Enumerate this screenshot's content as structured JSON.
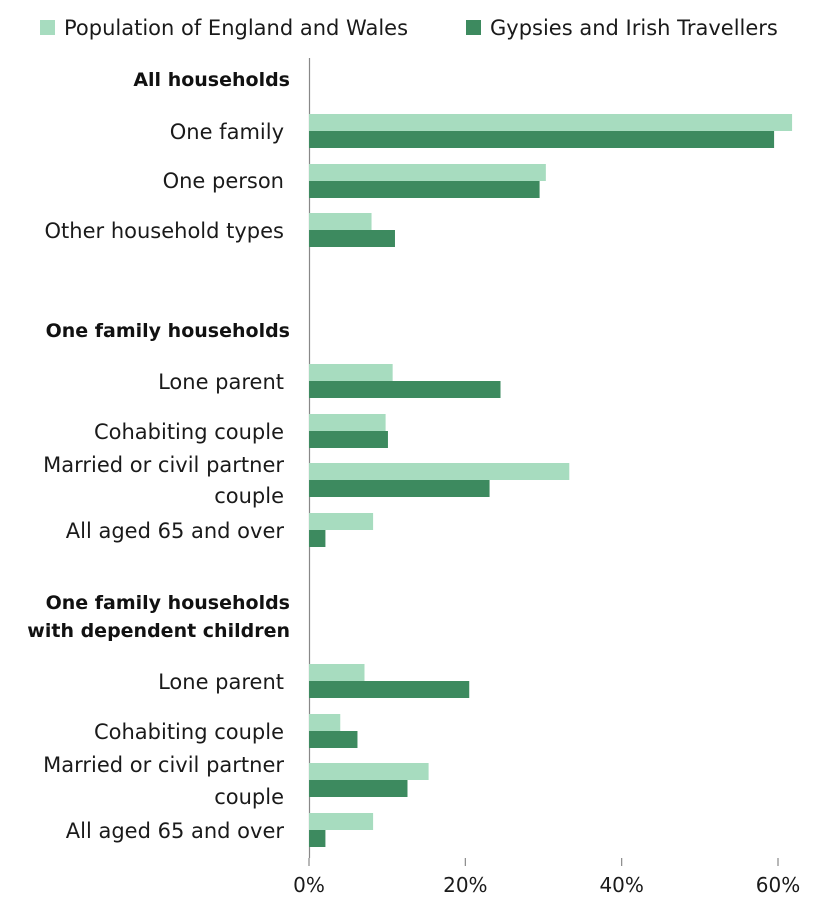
{
  "chart_data": {
    "type": "bar",
    "orientation": "horizontal",
    "xlim": [
      0,
      62
    ],
    "x_ticks": [
      "0%",
      "20%",
      "40%",
      "60%"
    ],
    "legend_position": "top",
    "colors": {
      "population": "#a7dcbf",
      "travellers": "#3d8a5f",
      "axis": "#888888"
    },
    "series": [
      {
        "name": "Population of England and Wales",
        "key": "population"
      },
      {
        "name": "Gypsies and Irish Travellers",
        "key": "travellers"
      }
    ],
    "groups": [
      {
        "title": [
          "All households"
        ],
        "categories": [
          {
            "label": [
              "One family"
            ],
            "population": 61.8,
            "travellers": 59.5
          },
          {
            "label": [
              "One person"
            ],
            "population": 30.3,
            "travellers": 29.5
          },
          {
            "label": [
              "Other household types"
            ],
            "population": 8.0,
            "travellers": 11.0
          }
        ]
      },
      {
        "title": [
          "One family households"
        ],
        "categories": [
          {
            "label": [
              "Lone parent"
            ],
            "population": 10.7,
            "travellers": 24.5
          },
          {
            "label": [
              "Cohabiting couple"
            ],
            "population": 9.8,
            "travellers": 10.1
          },
          {
            "label": [
              "Married or civil partner",
              "couple"
            ],
            "population": 33.3,
            "travellers": 23.1
          },
          {
            "label": [
              "All aged 65 and over"
            ],
            "population": 8.2,
            "travellers": 2.1
          }
        ]
      },
      {
        "title": [
          "One family households",
          "with dependent children"
        ],
        "categories": [
          {
            "label": [
              "Lone parent"
            ],
            "population": 7.1,
            "travellers": 20.5
          },
          {
            "label": [
              "Cohabiting couple"
            ],
            "population": 4.0,
            "travellers": 6.2
          },
          {
            "label": [
              "Married or civil partner",
              "couple"
            ],
            "population": 15.3,
            "travellers": 12.6
          },
          {
            "label": [
              "All aged 65 and over"
            ],
            "population": 8.2,
            "travellers": 2.1
          }
        ]
      }
    ]
  }
}
